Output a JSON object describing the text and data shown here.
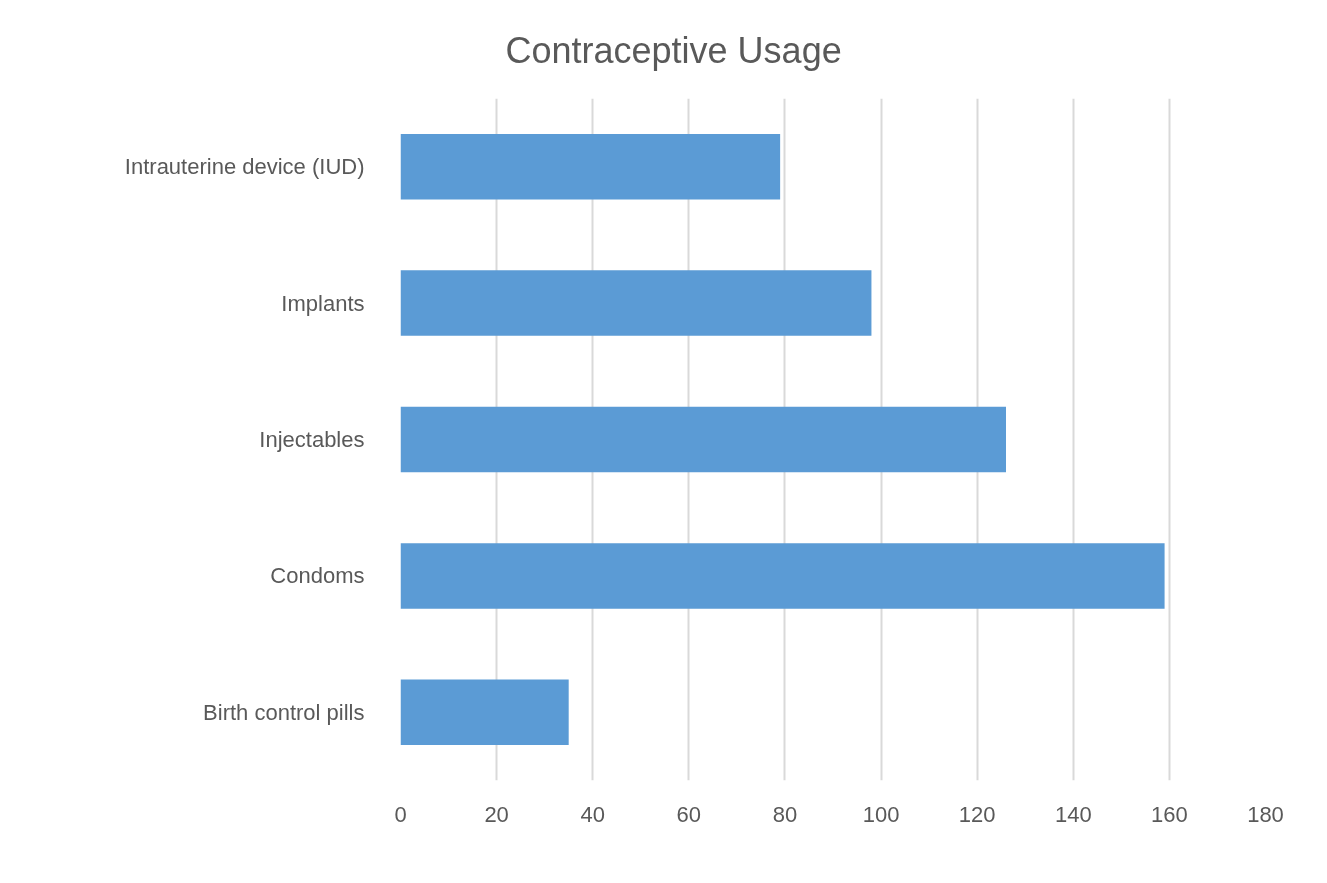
{
  "chart_data": {
    "type": "bar",
    "orientation": "horizontal",
    "title": "Contraceptive Usage",
    "categories": [
      "Intrauterine device (IUD)",
      "Implants",
      "Injectables",
      "Condoms",
      "Birth control pills"
    ],
    "values": [
      79,
      98,
      126,
      159,
      35
    ],
    "color": "#5b9bd5",
    "xlim": [
      0,
      180
    ],
    "xticks": [
      0,
      20,
      40,
      60,
      80,
      100,
      120,
      140,
      160,
      180
    ],
    "grid": "x"
  }
}
